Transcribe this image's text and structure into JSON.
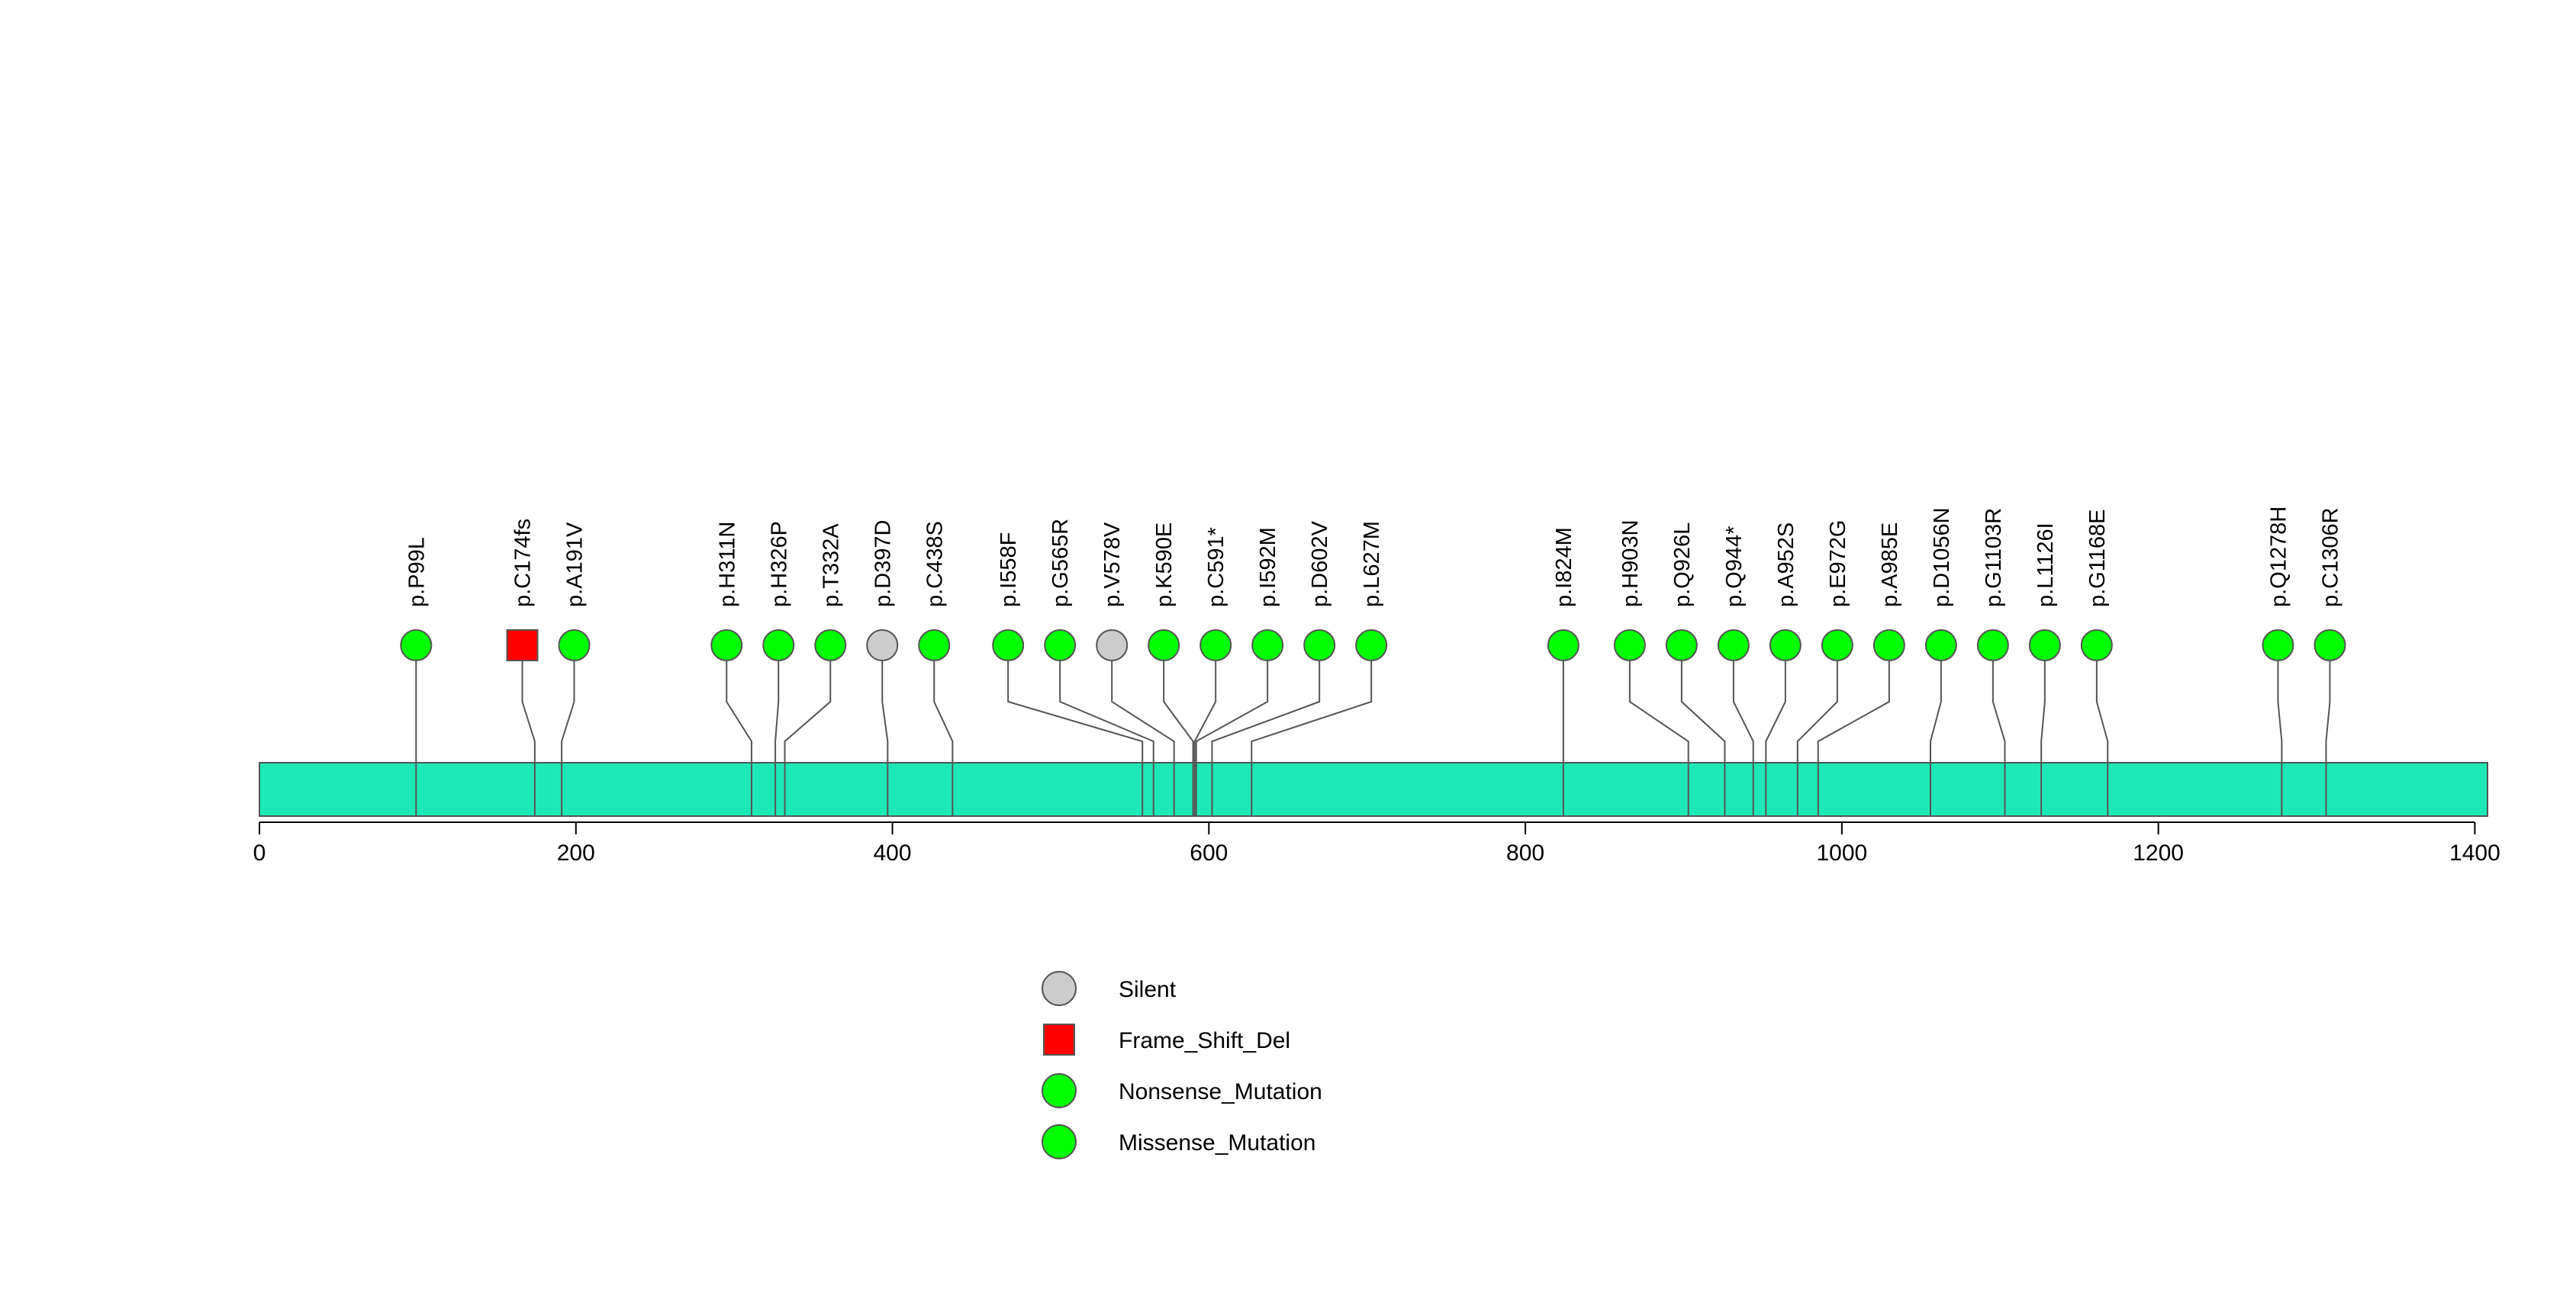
{
  "chart_data": {
    "type": "lollipop",
    "title": "",
    "xlabel": "",
    "ylabel": "",
    "protein_length": 1408,
    "xlim": [
      0,
      1408
    ],
    "x_ticks": [
      0,
      200,
      400,
      600,
      800,
      1000,
      1200,
      1400
    ],
    "x_tick_labels": [
      "0",
      "200",
      "400",
      "600",
      "800",
      "1000",
      "1200",
      "1400"
    ],
    "domain_color": "#1de9b6",
    "mutations": [
      {
        "label": "p.P99L",
        "pos": 99,
        "type": "Missense_Mutation"
      },
      {
        "label": "p.C174fs",
        "pos": 174,
        "type": "Frame_Shift_Del"
      },
      {
        "label": "p.A191V",
        "pos": 191,
        "type": "Missense_Mutation"
      },
      {
        "label": "p.H311N",
        "pos": 311,
        "type": "Missense_Mutation"
      },
      {
        "label": "p.H326P",
        "pos": 326,
        "type": "Missense_Mutation"
      },
      {
        "label": "p.T332A",
        "pos": 332,
        "type": "Missense_Mutation"
      },
      {
        "label": "p.D397D",
        "pos": 397,
        "type": "Silent"
      },
      {
        "label": "p.C438S",
        "pos": 438,
        "type": "Missense_Mutation"
      },
      {
        "label": "p.I558F",
        "pos": 558,
        "type": "Missense_Mutation"
      },
      {
        "label": "p.G565R",
        "pos": 565,
        "type": "Missense_Mutation"
      },
      {
        "label": "p.V578V",
        "pos": 578,
        "type": "Silent"
      },
      {
        "label": "p.K590E",
        "pos": 590,
        "type": "Missense_Mutation"
      },
      {
        "label": "p.C591*",
        "pos": 591,
        "type": "Nonsense_Mutation"
      },
      {
        "label": "p.I592M",
        "pos": 592,
        "type": "Missense_Mutation"
      },
      {
        "label": "p.D602V",
        "pos": 602,
        "type": "Missense_Mutation"
      },
      {
        "label": "p.L627M",
        "pos": 627,
        "type": "Missense_Mutation"
      },
      {
        "label": "p.I824M",
        "pos": 824,
        "type": "Missense_Mutation"
      },
      {
        "label": "p.H903N",
        "pos": 903,
        "type": "Missense_Mutation"
      },
      {
        "label": "p.Q926L",
        "pos": 926,
        "type": "Missense_Mutation"
      },
      {
        "label": "p.Q944*",
        "pos": 944,
        "type": "Nonsense_Mutation"
      },
      {
        "label": "p.A952S",
        "pos": 952,
        "type": "Missense_Mutation"
      },
      {
        "label": "p.E972G",
        "pos": 972,
        "type": "Missense_Mutation"
      },
      {
        "label": "p.A985E",
        "pos": 985,
        "type": "Missense_Mutation"
      },
      {
        "label": "p.D1056N",
        "pos": 1056,
        "type": "Missense_Mutation"
      },
      {
        "label": "p.G1103R",
        "pos": 1103,
        "type": "Missense_Mutation"
      },
      {
        "label": "p.L1126I",
        "pos": 1126,
        "type": "Missense_Mutation"
      },
      {
        "label": "p.G1168E",
        "pos": 1168,
        "type": "Missense_Mutation"
      },
      {
        "label": "p.Q1278H",
        "pos": 1278,
        "type": "Missense_Mutation"
      },
      {
        "label": "p.C1306R",
        "pos": 1306,
        "type": "Missense_Mutation"
      }
    ],
    "legend": [
      {
        "label": "Silent",
        "type": "Silent",
        "color": "#cccccc",
        "shape": "circle"
      },
      {
        "label": "Frame_Shift_Del",
        "type": "Frame_Shift_Del",
        "color": "#ff0000",
        "shape": "square"
      },
      {
        "label": "Nonsense_Mutation",
        "type": "Nonsense_Mutation",
        "color": "#00ff00",
        "shape": "circle"
      },
      {
        "label": "Missense_Mutation",
        "type": "Missense_Mutation",
        "color": "#00ff00",
        "shape": "circle"
      }
    ],
    "legend_placement": "bottom-center"
  }
}
